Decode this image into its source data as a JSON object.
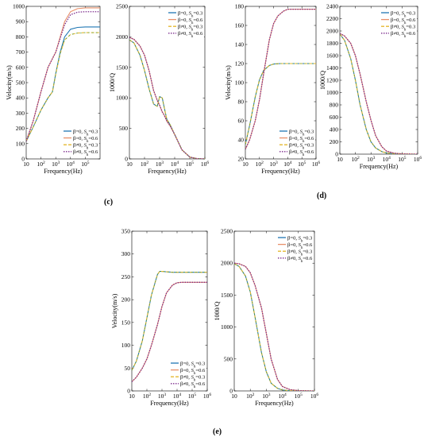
{
  "colors": {
    "s1": "#1f77b4",
    "s2": "#e8906a",
    "s3": "#e5b82f",
    "s4": "#7e2f8e",
    "green": "#3a9a3a"
  },
  "legend": [
    {
      "label": "β=0, S_h=0.3",
      "pre": "β=0, ",
      "s": "S",
      "sub": "h",
      "post": "=0.3",
      "color": "#1f77b4",
      "dash": ""
    },
    {
      "label": "β=0, S_h=0.6",
      "pre": "β=0, ",
      "s": "S",
      "sub": "h",
      "post": "=0.6",
      "color": "#e8906a",
      "dash": ""
    },
    {
      "label": "β≠0, S_h=0.3",
      "pre": "β≠0, ",
      "s": "S",
      "sub": "h",
      "post": "=0.3",
      "color": "#e5b82f",
      "dash": "4,2"
    },
    {
      "label": "β≠0, S_h=0.6",
      "pre": "β≠0, ",
      "s": "S",
      "sub": "h",
      "post": "=0.6",
      "color": "#7e2f8e",
      "dash": "1.5,1.5"
    }
  ],
  "panel_labels": {
    "c": "(c)",
    "d": "(d)",
    "e": "(e)"
  },
  "chart_data": [
    {
      "id": "c-velocity",
      "type": "line",
      "xscale": "log",
      "xlabel": "Frequency(Hz)",
      "ylabel": "Velocity(m/s)",
      "xlim": [
        10,
        1000000
      ],
      "ylim": [
        0,
        1000
      ],
      "xticks": [
        10,
        100,
        1000,
        10000,
        100000
      ],
      "xtick_labels": [
        "10",
        "10^2",
        "10^3",
        "10^4",
        "10^5"
      ],
      "yticks": [
        0,
        100,
        200,
        300,
        400,
        500,
        600,
        700,
        800,
        900,
        1000
      ],
      "legend_position": "bottom-right",
      "series": [
        {
          "name": "β=0, S_h=0.3",
          "style": 0,
          "x": [
            10,
            30,
            100,
            300,
            600,
            1000,
            2000,
            4000,
            10000,
            30000,
            100000,
            1000000
          ],
          "y": [
            115,
            210,
            320,
            400,
            440,
            560,
            700,
            800,
            850,
            862,
            865,
            865
          ]
        },
        {
          "name": "β=0, S_h=0.6",
          "style": 1,
          "x": [
            10,
            30,
            100,
            300,
            1000,
            2000,
            4000,
            10000,
            30000,
            100000,
            1000000
          ],
          "y": [
            115,
            250,
            440,
            600,
            700,
            800,
            900,
            965,
            985,
            990,
            990
          ]
        },
        {
          "name": "β≠0, S_h=0.3",
          "style": 2,
          "x": [
            10,
            30,
            100,
            300,
            600,
            1000,
            2000,
            4000,
            10000,
            30000,
            100000,
            1000000
          ],
          "y": [
            115,
            210,
            320,
            400,
            440,
            555,
            690,
            780,
            815,
            825,
            828,
            828
          ]
        },
        {
          "name": "β≠0, S_h=0.6",
          "style": 3,
          "x": [
            10,
            30,
            100,
            300,
            1000,
            2000,
            4000,
            10000,
            30000,
            100000,
            1000000
          ],
          "y": [
            115,
            250,
            440,
            600,
            700,
            790,
            880,
            945,
            962,
            965,
            965
          ]
        }
      ]
    },
    {
      "id": "c-atten",
      "type": "line",
      "xscale": "log",
      "xlabel": "Frequency(Hz)",
      "ylabel": "1000/Q",
      "xlim": [
        10,
        1000000
      ],
      "ylim": [
        0,
        2500
      ],
      "xticks": [
        10,
        100,
        1000,
        10000,
        100000,
        1000000
      ],
      "xtick_labels": [
        "10",
        "10^2",
        "10^3",
        "10^4",
        "10^5",
        "10^6"
      ],
      "yticks": [
        0,
        500,
        1000,
        1500,
        2000,
        2500
      ],
      "legend_position": "top-right",
      "series": [
        {
          "name": "β=0, S_h=0.3",
          "style": 0,
          "x": [
            10,
            20,
            50,
            100,
            200,
            400,
            700,
            1000,
            1500,
            2000,
            3000,
            5000,
            10000,
            30000,
            100000,
            300000,
            1000000
          ],
          "y": [
            1950,
            1900,
            1700,
            1450,
            1150,
            900,
            860,
            1020,
            1000,
            850,
            650,
            560,
            400,
            150,
            30,
            5,
            0
          ]
        },
        {
          "name": "β=0, S_h=0.6",
          "style": 1,
          "x": [
            10,
            20,
            50,
            100,
            200,
            400,
            700,
            1000,
            1500,
            2000,
            3000,
            5000,
            10000,
            30000,
            100000,
            300000,
            1000000
          ],
          "y": [
            1990,
            1960,
            1850,
            1700,
            1450,
            1120,
            960,
            880,
            770,
            720,
            620,
            540,
            400,
            150,
            30,
            5,
            0
          ]
        },
        {
          "name": "β≠0, S_h=0.3",
          "style": 2,
          "x": [
            10,
            20,
            50,
            100,
            200,
            400,
            700,
            1000,
            1500,
            2000,
            3000,
            5000,
            10000,
            30000,
            100000,
            300000,
            1000000
          ],
          "y": [
            1950,
            1900,
            1700,
            1450,
            1150,
            900,
            860,
            1020,
            1000,
            850,
            650,
            560,
            400,
            150,
            30,
            5,
            0
          ]
        },
        {
          "name": "β≠0, S_h=0.6",
          "style": 3,
          "x": [
            10,
            20,
            50,
            100,
            200,
            400,
            700,
            1000,
            1500,
            2000,
            3000,
            5000,
            10000,
            30000,
            100000,
            300000,
            1000000
          ],
          "y": [
            1990,
            1960,
            1850,
            1700,
            1450,
            1120,
            960,
            880,
            770,
            720,
            620,
            540,
            400,
            150,
            30,
            5,
            0
          ]
        }
      ]
    },
    {
      "id": "d-velocity",
      "type": "line",
      "xscale": "log",
      "xlabel": "Frequency(Hz)",
      "ylabel": "Velocity(m/s)",
      "xlim": [
        10,
        1000000
      ],
      "ylim": [
        20,
        180
      ],
      "xticks": [
        10,
        100,
        1000,
        10000,
        100000,
        1000000
      ],
      "xtick_labels": [
        "10",
        "10^2",
        "10^3",
        "10^4",
        "10^5",
        "10^6"
      ],
      "yticks": [
        20,
        40,
        60,
        80,
        100,
        120,
        140,
        160,
        180
      ],
      "legend_position": "bottom-right",
      "series": [
        {
          "name": "β=0, S_h=0.3",
          "style": 0,
          "x": [
            10,
            20,
            50,
            100,
            200,
            500,
            1000,
            3000,
            10000,
            100000,
            1000000
          ],
          "y": [
            35,
            55,
            85,
            103,
            113,
            118,
            119.5,
            120,
            120,
            120,
            120
          ]
        },
        {
          "name": "β=0, S_h=0.6",
          "style": 1,
          "x": [
            10,
            20,
            50,
            100,
            200,
            500,
            1000,
            2000,
            5000,
            10000,
            100000,
            1000000
          ],
          "y": [
            30,
            40,
            60,
            82,
            110,
            145,
            162,
            170,
            175,
            177,
            177,
            177
          ]
        },
        {
          "name": "β≠0, S_h=0.3",
          "style": 2,
          "x": [
            10,
            20,
            50,
            100,
            200,
            500,
            1000,
            3000,
            10000,
            100000,
            1000000
          ],
          "y": [
            35,
            55,
            85,
            103,
            113,
            118,
            119.5,
            120,
            120,
            120,
            120
          ]
        },
        {
          "name": "β≠0, S_h=0.6",
          "style": 3,
          "x": [
            10,
            20,
            50,
            100,
            200,
            500,
            1000,
            2000,
            5000,
            10000,
            100000,
            1000000
          ],
          "y": [
            30,
            40,
            60,
            82,
            110,
            145,
            162,
            170,
            175,
            177,
            177,
            177
          ]
        }
      ]
    },
    {
      "id": "d-atten",
      "type": "line",
      "xscale": "log",
      "xlabel": "Frequency(Hz)",
      "ylabel": "1000/Q",
      "xlim": [
        10,
        1000000
      ],
      "ylim": [
        0,
        2400
      ],
      "xticks": [
        10,
        100,
        1000,
        10000,
        100000,
        1000000
      ],
      "xtick_labels": [
        "10",
        "10^2",
        "10^3",
        "10^4",
        "10^5",
        "10^6"
      ],
      "yticks": [
        0,
        200,
        400,
        600,
        800,
        1000,
        1200,
        1400,
        1600,
        1800,
        2000,
        2200,
        2400
      ],
      "legend_position": "top-right",
      "series": [
        {
          "name": "β=0, S_h=0.3",
          "style": 0,
          "x": [
            10,
            20,
            50,
            100,
            200,
            500,
            1000,
            2000,
            5000,
            10000,
            30000,
            100000,
            1000000
          ],
          "y": [
            1950,
            1850,
            1550,
            1200,
            800,
            400,
            200,
            100,
            40,
            20,
            5,
            0,
            0
          ]
        },
        {
          "name": "β=0, S_h=0.6",
          "style": 1,
          "x": [
            10,
            20,
            50,
            100,
            200,
            500,
            1000,
            2000,
            5000,
            10000,
            30000,
            100000,
            1000000
          ],
          "y": [
            1960,
            1920,
            1800,
            1600,
            1300,
            850,
            550,
            300,
            120,
            50,
            15,
            5,
            0
          ]
        },
        {
          "name": "β≠0, S_h=0.3",
          "style": 2,
          "x": [
            10,
            20,
            50,
            100,
            200,
            500,
            1000,
            2000,
            5000,
            10000,
            30000,
            100000,
            1000000
          ],
          "y": [
            1950,
            1850,
            1550,
            1200,
            800,
            400,
            200,
            100,
            40,
            20,
            5,
            0,
            0
          ]
        },
        {
          "name": "β≠0, S_h=0.6",
          "style": 3,
          "x": [
            10,
            20,
            50,
            100,
            200,
            500,
            1000,
            2000,
            5000,
            10000,
            30000,
            100000,
            1000000
          ],
          "y": [
            1960,
            1920,
            1800,
            1600,
            1300,
            850,
            550,
            300,
            120,
            50,
            15,
            5,
            0
          ]
        }
      ]
    },
    {
      "id": "e-velocity",
      "type": "line",
      "xscale": "log",
      "xlabel": "Frequency(Hz)",
      "ylabel": "Velocity(m/s)",
      "xlim": [
        10,
        1000000
      ],
      "ylim": [
        0,
        350
      ],
      "xticks": [
        10,
        100,
        1000,
        10000,
        100000,
        1000000
      ],
      "xtick_labels": [
        "10",
        "10^2",
        "10^3",
        "10^4",
        "10^5",
        "10^6"
      ],
      "yticks": [
        0,
        50,
        100,
        150,
        200,
        250,
        300,
        350
      ],
      "legend_position": "bottom-right",
      "series": [
        {
          "name": "β=0, S_h=0.3",
          "style": 0,
          "x": [
            10,
            20,
            50,
            100,
            200,
            500,
            700,
            1000,
            2000,
            5000,
            10000,
            100000,
            1000000
          ],
          "y": [
            45,
            65,
            110,
            160,
            210,
            255,
            262,
            262,
            261,
            260,
            260,
            260,
            260
          ]
        },
        {
          "name": "β=0, S_h=0.6",
          "style": 1,
          "x": [
            10,
            20,
            50,
            100,
            200,
            500,
            1000,
            2000,
            5000,
            10000,
            20000,
            100000,
            1000000
          ],
          "y": [
            20,
            30,
            50,
            70,
            100,
            145,
            185,
            215,
            232,
            237,
            238,
            238,
            238
          ]
        },
        {
          "name": "β≠0, S_h=0.3",
          "style": 2,
          "x": [
            10,
            20,
            50,
            100,
            200,
            500,
            700,
            1000,
            2000,
            5000,
            10000,
            100000,
            1000000
          ],
          "y": [
            45,
            65,
            110,
            160,
            210,
            255,
            262,
            262,
            261,
            260,
            260,
            260,
            260
          ]
        },
        {
          "name": "β≠0, S_h=0.6",
          "style": 3,
          "x": [
            10,
            20,
            50,
            100,
            200,
            500,
            1000,
            2000,
            5000,
            10000,
            20000,
            100000,
            1000000
          ],
          "y": [
            20,
            30,
            50,
            70,
            100,
            145,
            185,
            215,
            232,
            237,
            238,
            238,
            238
          ]
        }
      ]
    },
    {
      "id": "e-atten",
      "type": "line",
      "xscale": "log",
      "xlabel": "Frequency(Hz)",
      "ylabel": "1000/Q",
      "xlim": [
        10,
        1000000
      ],
      "ylim": [
        0,
        2500
      ],
      "xticks": [
        10,
        100,
        1000,
        10000,
        100000,
        1000000
      ],
      "xtick_labels": [
        "10",
        "10^2",
        "10^3",
        "10^4",
        "10^5",
        "10^6"
      ],
      "yticks": [
        0,
        500,
        1000,
        1500,
        2000,
        2500
      ],
      "legend_position": "top-right",
      "series": [
        {
          "name": "β=0, S_h=0.3",
          "style": 0,
          "x": [
            10,
            20,
            50,
            100,
            200,
            500,
            1000,
            2000,
            5000,
            10000,
            30000,
            100000,
            1000000
          ],
          "y": [
            1990,
            1950,
            1800,
            1550,
            1150,
            600,
            300,
            120,
            40,
            15,
            3,
            0,
            0
          ]
        },
        {
          "name": "β=0, S_h=0.6",
          "style": 1,
          "x": [
            10,
            20,
            50,
            100,
            200,
            500,
            1000,
            2000,
            5000,
            10000,
            30000,
            100000,
            1000000
          ],
          "y": [
            2000,
            1990,
            1950,
            1850,
            1650,
            1300,
            900,
            500,
            180,
            70,
            20,
            5,
            0
          ]
        },
        {
          "name": "β≠0, S_h=0.3",
          "style": 2,
          "x": [
            10,
            20,
            50,
            100,
            200,
            500,
            1000,
            2000,
            5000,
            10000,
            30000,
            100000,
            1000000
          ],
          "y": [
            1990,
            1950,
            1800,
            1550,
            1150,
            600,
            300,
            120,
            40,
            15,
            3,
            0,
            0
          ]
        },
        {
          "name": "β≠0, S_h=0.6",
          "style": 3,
          "x": [
            10,
            20,
            50,
            100,
            200,
            500,
            1000,
            2000,
            5000,
            10000,
            30000,
            100000,
            1000000
          ],
          "y": [
            2000,
            1990,
            1950,
            1850,
            1650,
            1300,
            900,
            500,
            180,
            70,
            20,
            5,
            0
          ]
        }
      ]
    }
  ]
}
